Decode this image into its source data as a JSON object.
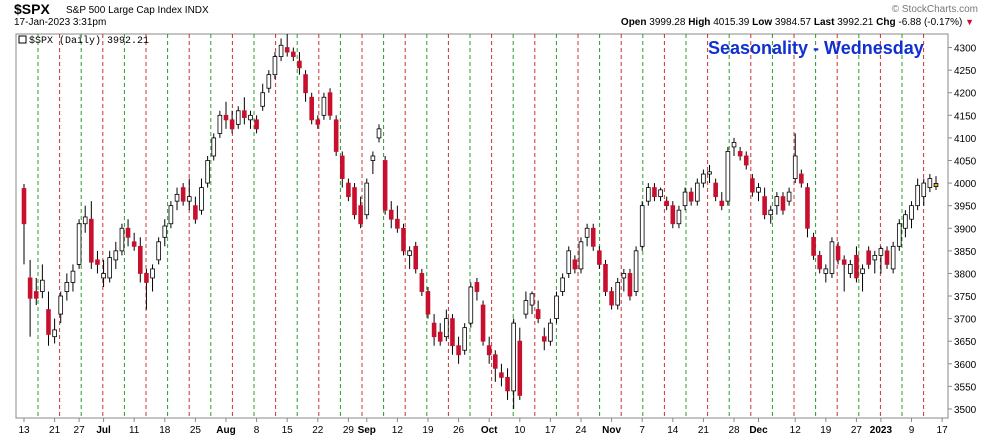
{
  "header": {
    "symbol": "$SPX",
    "name": "S&P 500 Large Cap Index",
    "exchange": "INDX",
    "date": "17-Jan-2023 3:31pm",
    "watermark": "© StockCharts.com",
    "open_label": "Open",
    "open": "3999.28",
    "high_label": "High",
    "high": "4015.39",
    "low_label": "Low",
    "low": "3984.57",
    "last_label": "Last",
    "last": "3992.21",
    "chg_label": "Chg",
    "chg": "-6.88 (-0.17%)"
  },
  "chart_data": {
    "type": "candlestick",
    "title": "Seasonality - Wednesday",
    "legend": "$SPX (Daily) 3992.21",
    "ylim": [
      3480,
      4330
    ],
    "y_ticks": [
      3500,
      3550,
      3600,
      3650,
      3700,
      3750,
      3800,
      3850,
      3900,
      3950,
      4000,
      4050,
      4100,
      4150,
      4200,
      4250,
      4300
    ],
    "x_tick_labels": [
      "13",
      "21",
      "27",
      "Jul",
      "11",
      "18",
      "25",
      "Aug",
      "8",
      "15",
      "22",
      "29",
      "Sep",
      "12",
      "19",
      "26",
      "Oct",
      "10",
      "17",
      "24",
      "Nov",
      "7",
      "14",
      "21",
      "28",
      "Dec",
      "12",
      "19",
      "27",
      "2023",
      "9",
      "17"
    ],
    "x_tick_indices": [
      0,
      5,
      9,
      13,
      18,
      23,
      28,
      33,
      38,
      43,
      48,
      53,
      56,
      61,
      66,
      71,
      76,
      81,
      86,
      91,
      96,
      101,
      106,
      111,
      116,
      120,
      126,
      131,
      136,
      140,
      145,
      150
    ],
    "wednesday_lines": {
      "colors": [
        "#2a9d2a",
        "#d03030"
      ]
    },
    "colors": {
      "up": "#ffffff",
      "down": "#c8102e",
      "up_outline": "#000000",
      "last": "#e8c020"
    },
    "candles": [
      {
        "o": 3988,
        "h": 3998,
        "l": 3820,
        "c": 3910
      },
      {
        "o": 3790,
        "h": 3830,
        "l": 3660,
        "c": 3745
      },
      {
        "o": 3760,
        "h": 3790,
        "l": 3730,
        "c": 3745
      },
      {
        "o": 3760,
        "h": 3820,
        "l": 3745,
        "c": 3785
      },
      {
        "o": 3720,
        "h": 3760,
        "l": 3640,
        "c": 3665
      },
      {
        "o": 3660,
        "h": 3700,
        "l": 3645,
        "c": 3675
      },
      {
        "o": 3710,
        "h": 3760,
        "l": 3690,
        "c": 3750
      },
      {
        "o": 3760,
        "h": 3800,
        "l": 3740,
        "c": 3780
      },
      {
        "o": 3780,
        "h": 3820,
        "l": 3760,
        "c": 3805
      },
      {
        "o": 3820,
        "h": 3920,
        "l": 3810,
        "c": 3910
      },
      {
        "o": 3910,
        "h": 3950,
        "l": 3890,
        "c": 3925
      },
      {
        "o": 3920,
        "h": 3960,
        "l": 3810,
        "c": 3825
      },
      {
        "o": 3830,
        "h": 3850,
        "l": 3800,
        "c": 3820
      },
      {
        "o": 3790,
        "h": 3830,
        "l": 3770,
        "c": 3800
      },
      {
        "o": 3790,
        "h": 3850,
        "l": 3780,
        "c": 3835
      },
      {
        "o": 3830,
        "h": 3870,
        "l": 3810,
        "c": 3850
      },
      {
        "o": 3850,
        "h": 3910,
        "l": 3840,
        "c": 3900
      },
      {
        "o": 3900,
        "h": 3920,
        "l": 3860,
        "c": 3880
      },
      {
        "o": 3870,
        "h": 3890,
        "l": 3850,
        "c": 3860
      },
      {
        "o": 3860,
        "h": 3880,
        "l": 3780,
        "c": 3800
      },
      {
        "o": 3800,
        "h": 3810,
        "l": 3720,
        "c": 3780
      },
      {
        "o": 3790,
        "h": 3820,
        "l": 3760,
        "c": 3810
      },
      {
        "o": 3830,
        "h": 3880,
        "l": 3820,
        "c": 3870
      },
      {
        "o": 3880,
        "h": 3920,
        "l": 3860,
        "c": 3905
      },
      {
        "o": 3910,
        "h": 3960,
        "l": 3900,
        "c": 3950
      },
      {
        "o": 3960,
        "h": 3990,
        "l": 3940,
        "c": 3975
      },
      {
        "o": 3990,
        "h": 4000,
        "l": 3950,
        "c": 3960
      },
      {
        "o": 3960,
        "h": 4010,
        "l": 3940,
        "c": 3970
      },
      {
        "o": 3950,
        "h": 3970,
        "l": 3910,
        "c": 3920
      },
      {
        "o": 3940,
        "h": 4010,
        "l": 3930,
        "c": 3990
      },
      {
        "o": 4000,
        "h": 4060,
        "l": 3990,
        "c": 4050
      },
      {
        "o": 4060,
        "h": 4110,
        "l": 4050,
        "c": 4100
      },
      {
        "o": 4110,
        "h": 4160,
        "l": 4100,
        "c": 4150
      },
      {
        "o": 4150,
        "h": 4180,
        "l": 4120,
        "c": 4140
      },
      {
        "o": 4140,
        "h": 4160,
        "l": 4110,
        "c": 4120
      },
      {
        "o": 4130,
        "h": 4170,
        "l": 4120,
        "c": 4160
      },
      {
        "o": 4160,
        "h": 4190,
        "l": 4130,
        "c": 4145
      },
      {
        "o": 4140,
        "h": 4160,
        "l": 4120,
        "c": 4150
      },
      {
        "o": 4140,
        "h": 4150,
        "l": 4110,
        "c": 4120
      },
      {
        "o": 4170,
        "h": 4220,
        "l": 4160,
        "c": 4200
      },
      {
        "o": 4210,
        "h": 4250,
        "l": 4200,
        "c": 4240
      },
      {
        "o": 4240,
        "h": 4290,
        "l": 4230,
        "c": 4280
      },
      {
        "o": 4280,
        "h": 4320,
        "l": 4270,
        "c": 4305
      },
      {
        "o": 4300,
        "h": 4330,
        "l": 4280,
        "c": 4290
      },
      {
        "o": 4290,
        "h": 4300,
        "l": 4270,
        "c": 4280
      },
      {
        "o": 4270,
        "h": 4290,
        "l": 4240,
        "c": 4255
      },
      {
        "o": 4240,
        "h": 4250,
        "l": 4180,
        "c": 4200
      },
      {
        "o": 4190,
        "h": 4200,
        "l": 4130,
        "c": 4140
      },
      {
        "o": 4140,
        "h": 4150,
        "l": 4120,
        "c": 4130
      },
      {
        "o": 4150,
        "h": 4200,
        "l": 4140,
        "c": 4190
      },
      {
        "o": 4200,
        "h": 4210,
        "l": 4140,
        "c": 4150
      },
      {
        "o": 4140,
        "h": 4150,
        "l": 4060,
        "c": 4070
      },
      {
        "o": 4060,
        "h": 4070,
        "l": 3990,
        "c": 4010
      },
      {
        "o": 4000,
        "h": 4010,
        "l": 3960,
        "c": 3970
      },
      {
        "o": 3990,
        "h": 4000,
        "l": 3920,
        "c": 3930
      },
      {
        "o": 3950,
        "h": 3970,
        "l": 3900,
        "c": 3910
      },
      {
        "o": 3930,
        "h": 4010,
        "l": 3920,
        "c": 4000
      },
      {
        "o": 4050,
        "h": 4070,
        "l": 4020,
        "c": 4060
      },
      {
        "o": 4100,
        "h": 4130,
        "l": 4090,
        "c": 4120
      },
      {
        "o": 4050,
        "h": 4060,
        "l": 3930,
        "c": 3940
      },
      {
        "o": 3940,
        "h": 3960,
        "l": 3900,
        "c": 3920
      },
      {
        "o": 3920,
        "h": 3950,
        "l": 3890,
        "c": 3900
      },
      {
        "o": 3900,
        "h": 3910,
        "l": 3840,
        "c": 3850
      },
      {
        "o": 3840,
        "h": 3860,
        "l": 3810,
        "c": 3850
      },
      {
        "o": 3860,
        "h": 3870,
        "l": 3800,
        "c": 3810
      },
      {
        "o": 3800,
        "h": 3810,
        "l": 3750,
        "c": 3760
      },
      {
        "o": 3760,
        "h": 3770,
        "l": 3700,
        "c": 3710
      },
      {
        "o": 3690,
        "h": 3710,
        "l": 3640,
        "c": 3660
      },
      {
        "o": 3670,
        "h": 3690,
        "l": 3640,
        "c": 3650
      },
      {
        "o": 3660,
        "h": 3720,
        "l": 3650,
        "c": 3700
      },
      {
        "o": 3700,
        "h": 3710,
        "l": 3620,
        "c": 3640
      },
      {
        "o": 3640,
        "h": 3660,
        "l": 3600,
        "c": 3620
      },
      {
        "o": 3630,
        "h": 3690,
        "l": 3620,
        "c": 3680
      },
      {
        "o": 3690,
        "h": 3780,
        "l": 3680,
        "c": 3770
      },
      {
        "o": 3780,
        "h": 3790,
        "l": 3740,
        "c": 3760
      },
      {
        "o": 3730,
        "h": 3740,
        "l": 3640,
        "c": 3650
      },
      {
        "o": 3640,
        "h": 3660,
        "l": 3600,
        "c": 3620
      },
      {
        "o": 3620,
        "h": 3630,
        "l": 3560,
        "c": 3590
      },
      {
        "o": 3580,
        "h": 3600,
        "l": 3550,
        "c": 3570
      },
      {
        "o": 3570,
        "h": 3590,
        "l": 3520,
        "c": 3540
      },
      {
        "o": 3540,
        "h": 3700,
        "l": 3500,
        "c": 3690
      },
      {
        "o": 3650,
        "h": 3680,
        "l": 3520,
        "c": 3530
      },
      {
        "o": 3710,
        "h": 3760,
        "l": 3700,
        "c": 3740
      },
      {
        "o": 3730,
        "h": 3760,
        "l": 3710,
        "c": 3755
      },
      {
        "o": 3720,
        "h": 3740,
        "l": 3690,
        "c": 3700
      },
      {
        "o": 3660,
        "h": 3680,
        "l": 3630,
        "c": 3650
      },
      {
        "o": 3650,
        "h": 3700,
        "l": 3640,
        "c": 3690
      },
      {
        "o": 3700,
        "h": 3760,
        "l": 3690,
        "c": 3750
      },
      {
        "o": 3760,
        "h": 3800,
        "l": 3750,
        "c": 3790
      },
      {
        "o": 3800,
        "h": 3860,
        "l": 3790,
        "c": 3850
      },
      {
        "o": 3830,
        "h": 3840,
        "l": 3800,
        "c": 3810
      },
      {
        "o": 3810,
        "h": 3880,
        "l": 3800,
        "c": 3870
      },
      {
        "o": 3880,
        "h": 3910,
        "l": 3860,
        "c": 3900
      },
      {
        "o": 3900,
        "h": 3910,
        "l": 3850,
        "c": 3860
      },
      {
        "o": 3850,
        "h": 3860,
        "l": 3810,
        "c": 3820
      },
      {
        "o": 3820,
        "h": 3830,
        "l": 3750,
        "c": 3760
      },
      {
        "o": 3760,
        "h": 3770,
        "l": 3720,
        "c": 3730
      },
      {
        "o": 3730,
        "h": 3790,
        "l": 3720,
        "c": 3780
      },
      {
        "o": 3790,
        "h": 3810,
        "l": 3760,
        "c": 3800
      },
      {
        "o": 3800,
        "h": 3810,
        "l": 3740,
        "c": 3750
      },
      {
        "o": 3760,
        "h": 3860,
        "l": 3750,
        "c": 3850
      },
      {
        "o": 3860,
        "h": 3960,
        "l": 3850,
        "c": 3950
      },
      {
        "o": 3960,
        "h": 4000,
        "l": 3950,
        "c": 3990
      },
      {
        "o": 3990,
        "h": 4000,
        "l": 3960,
        "c": 3970
      },
      {
        "o": 3970,
        "h": 3990,
        "l": 3960,
        "c": 3985
      },
      {
        "o": 3960,
        "h": 3970,
        "l": 3940,
        "c": 3950
      },
      {
        "o": 3950,
        "h": 3960,
        "l": 3900,
        "c": 3910
      },
      {
        "o": 3910,
        "h": 3950,
        "l": 3900,
        "c": 3940
      },
      {
        "o": 3950,
        "h": 3990,
        "l": 3940,
        "c": 3980
      },
      {
        "o": 3980,
        "h": 3990,
        "l": 3950,
        "c": 3960
      },
      {
        "o": 3960,
        "h": 4010,
        "l": 3950,
        "c": 4000
      },
      {
        "o": 4000,
        "h": 4030,
        "l": 3990,
        "c": 4020
      },
      {
        "o": 4020,
        "h": 4040,
        "l": 4000,
        "c": 4025
      },
      {
        "o": 4000,
        "h": 4010,
        "l": 3960,
        "c": 3970
      },
      {
        "o": 3960,
        "h": 3980,
        "l": 3940,
        "c": 3950
      },
      {
        "o": 3960,
        "h": 4080,
        "l": 3950,
        "c": 4070
      },
      {
        "o": 4080,
        "h": 4100,
        "l": 4060,
        "c": 4090
      },
      {
        "o": 4070,
        "h": 4080,
        "l": 4050,
        "c": 4060
      },
      {
        "o": 4060,
        "h": 4070,
        "l": 4030,
        "c": 4040
      },
      {
        "o": 4010,
        "h": 4020,
        "l": 3970,
        "c": 3980
      },
      {
        "o": 3980,
        "h": 4000,
        "l": 3960,
        "c": 3990
      },
      {
        "o": 3970,
        "h": 3990,
        "l": 3920,
        "c": 3930
      },
      {
        "o": 3930,
        "h": 3950,
        "l": 3910,
        "c": 3940
      },
      {
        "o": 3950,
        "h": 3980,
        "l": 3930,
        "c": 3970
      },
      {
        "o": 3970,
        "h": 3980,
        "l": 3930,
        "c": 3940
      },
      {
        "o": 3960,
        "h": 3990,
        "l": 3950,
        "c": 3980
      },
      {
        "o": 4010,
        "h": 4110,
        "l": 4000,
        "c": 4060
      },
      {
        "o": 4020,
        "h": 4030,
        "l": 3990,
        "c": 4000
      },
      {
        "o": 3990,
        "h": 4000,
        "l": 3880,
        "c": 3900
      },
      {
        "o": 3880,
        "h": 3890,
        "l": 3830,
        "c": 3840
      },
      {
        "o": 3840,
        "h": 3850,
        "l": 3800,
        "c": 3810
      },
      {
        "o": 3800,
        "h": 3820,
        "l": 3780,
        "c": 3810
      },
      {
        "o": 3800,
        "h": 3880,
        "l": 3790,
        "c": 3870
      },
      {
        "o": 3860,
        "h": 3870,
        "l": 3820,
        "c": 3830
      },
      {
        "o": 3830,
        "h": 3840,
        "l": 3760,
        "c": 3820
      },
      {
        "o": 3800,
        "h": 3830,
        "l": 3790,
        "c": 3820
      },
      {
        "o": 3840,
        "h": 3860,
        "l": 3780,
        "c": 3790
      },
      {
        "o": 3800,
        "h": 3820,
        "l": 3760,
        "c": 3810
      },
      {
        "o": 3850,
        "h": 3860,
        "l": 3810,
        "c": 3820
      },
      {
        "o": 3830,
        "h": 3850,
        "l": 3800,
        "c": 3840
      },
      {
        "o": 3840,
        "h": 3860,
        "l": 3800,
        "c": 3855
      },
      {
        "o": 3850,
        "h": 3860,
        "l": 3810,
        "c": 3820
      },
      {
        "o": 3810,
        "h": 3870,
        "l": 3800,
        "c": 3860
      },
      {
        "o": 3860,
        "h": 3920,
        "l": 3850,
        "c": 3910
      },
      {
        "o": 3900,
        "h": 3940,
        "l": 3880,
        "c": 3930
      },
      {
        "o": 3920,
        "h": 3960,
        "l": 3900,
        "c": 3950
      },
      {
        "o": 3950,
        "h": 4010,
        "l": 3940,
        "c": 3995
      },
      {
        "o": 3970,
        "h": 4010,
        "l": 3950,
        "c": 4000
      },
      {
        "o": 3990,
        "h": 4020,
        "l": 3980,
        "c": 4010
      },
      {
        "o": 3999.28,
        "h": 4015.39,
        "l": 3984.57,
        "c": 3992.21
      }
    ]
  }
}
